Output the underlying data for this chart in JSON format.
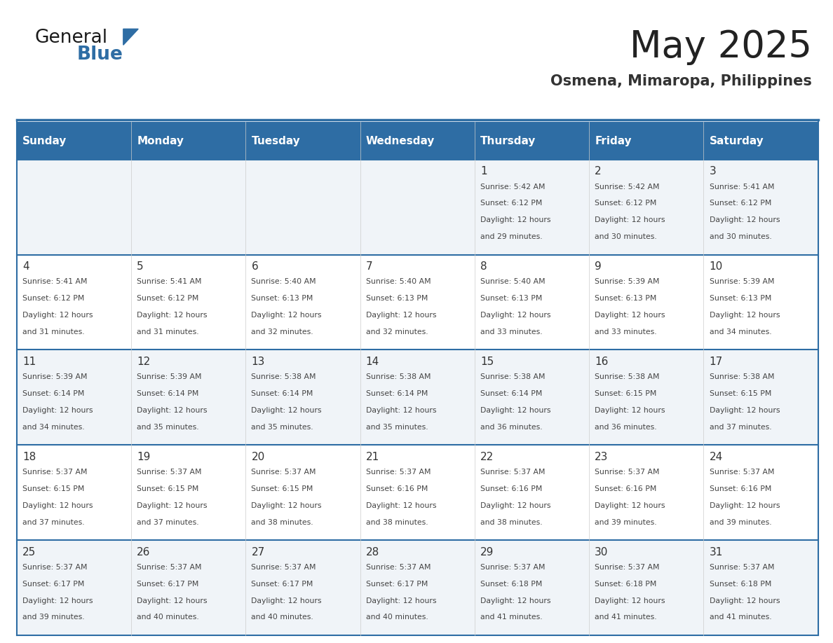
{
  "title": "May 2025",
  "subtitle": "Osmena, Mimaropa, Philippines",
  "days_of_week": [
    "Sunday",
    "Monday",
    "Tuesday",
    "Wednesday",
    "Thursday",
    "Friday",
    "Saturday"
  ],
  "header_bg": "#2E6DA4",
  "header_text": "#FFFFFF",
  "row_bg_even": "#F0F4F8",
  "row_bg_odd": "#FFFFFF",
  "grid_line_color": "#2E6DA4",
  "text_color": "#333333",
  "day_number_color": "#333333",
  "title_color": "#222222",
  "subtitle_color": "#333333",
  "calendar_data": [
    [
      {
        "day": "",
        "sunrise": "",
        "sunset": "",
        "daylight": ""
      },
      {
        "day": "",
        "sunrise": "",
        "sunset": "",
        "daylight": ""
      },
      {
        "day": "",
        "sunrise": "",
        "sunset": "",
        "daylight": ""
      },
      {
        "day": "",
        "sunrise": "",
        "sunset": "",
        "daylight": ""
      },
      {
        "day": "1",
        "sunrise": "5:42 AM",
        "sunset": "6:12 PM",
        "daylight": "12 hours and 29 minutes."
      },
      {
        "day": "2",
        "sunrise": "5:42 AM",
        "sunset": "6:12 PM",
        "daylight": "12 hours and 30 minutes."
      },
      {
        "day": "3",
        "sunrise": "5:41 AM",
        "sunset": "6:12 PM",
        "daylight": "12 hours and 30 minutes."
      }
    ],
    [
      {
        "day": "4",
        "sunrise": "5:41 AM",
        "sunset": "6:12 PM",
        "daylight": "12 hours and 31 minutes."
      },
      {
        "day": "5",
        "sunrise": "5:41 AM",
        "sunset": "6:12 PM",
        "daylight": "12 hours and 31 minutes."
      },
      {
        "day": "6",
        "sunrise": "5:40 AM",
        "sunset": "6:13 PM",
        "daylight": "12 hours and 32 minutes."
      },
      {
        "day": "7",
        "sunrise": "5:40 AM",
        "sunset": "6:13 PM",
        "daylight": "12 hours and 32 minutes."
      },
      {
        "day": "8",
        "sunrise": "5:40 AM",
        "sunset": "6:13 PM",
        "daylight": "12 hours and 33 minutes."
      },
      {
        "day": "9",
        "sunrise": "5:39 AM",
        "sunset": "6:13 PM",
        "daylight": "12 hours and 33 minutes."
      },
      {
        "day": "10",
        "sunrise": "5:39 AM",
        "sunset": "6:13 PM",
        "daylight": "12 hours and 34 minutes."
      }
    ],
    [
      {
        "day": "11",
        "sunrise": "5:39 AM",
        "sunset": "6:14 PM",
        "daylight": "12 hours and 34 minutes."
      },
      {
        "day": "12",
        "sunrise": "5:39 AM",
        "sunset": "6:14 PM",
        "daylight": "12 hours and 35 minutes."
      },
      {
        "day": "13",
        "sunrise": "5:38 AM",
        "sunset": "6:14 PM",
        "daylight": "12 hours and 35 minutes."
      },
      {
        "day": "14",
        "sunrise": "5:38 AM",
        "sunset": "6:14 PM",
        "daylight": "12 hours and 35 minutes."
      },
      {
        "day": "15",
        "sunrise": "5:38 AM",
        "sunset": "6:14 PM",
        "daylight": "12 hours and 36 minutes."
      },
      {
        "day": "16",
        "sunrise": "5:38 AM",
        "sunset": "6:15 PM",
        "daylight": "12 hours and 36 minutes."
      },
      {
        "day": "17",
        "sunrise": "5:38 AM",
        "sunset": "6:15 PM",
        "daylight": "12 hours and 37 minutes."
      }
    ],
    [
      {
        "day": "18",
        "sunrise": "5:37 AM",
        "sunset": "6:15 PM",
        "daylight": "12 hours and 37 minutes."
      },
      {
        "day": "19",
        "sunrise": "5:37 AM",
        "sunset": "6:15 PM",
        "daylight": "12 hours and 37 minutes."
      },
      {
        "day": "20",
        "sunrise": "5:37 AM",
        "sunset": "6:15 PM",
        "daylight": "12 hours and 38 minutes."
      },
      {
        "day": "21",
        "sunrise": "5:37 AM",
        "sunset": "6:16 PM",
        "daylight": "12 hours and 38 minutes."
      },
      {
        "day": "22",
        "sunrise": "5:37 AM",
        "sunset": "6:16 PM",
        "daylight": "12 hours and 38 minutes."
      },
      {
        "day": "23",
        "sunrise": "5:37 AM",
        "sunset": "6:16 PM",
        "daylight": "12 hours and 39 minutes."
      },
      {
        "day": "24",
        "sunrise": "5:37 AM",
        "sunset": "6:16 PM",
        "daylight": "12 hours and 39 minutes."
      }
    ],
    [
      {
        "day": "25",
        "sunrise": "5:37 AM",
        "sunset": "6:17 PM",
        "daylight": "12 hours and 39 minutes."
      },
      {
        "day": "26",
        "sunrise": "5:37 AM",
        "sunset": "6:17 PM",
        "daylight": "12 hours and 40 minutes."
      },
      {
        "day": "27",
        "sunrise": "5:37 AM",
        "sunset": "6:17 PM",
        "daylight": "12 hours and 40 minutes."
      },
      {
        "day": "28",
        "sunrise": "5:37 AM",
        "sunset": "6:17 PM",
        "daylight": "12 hours and 40 minutes."
      },
      {
        "day": "29",
        "sunrise": "5:37 AM",
        "sunset": "6:18 PM",
        "daylight": "12 hours and 41 minutes."
      },
      {
        "day": "30",
        "sunrise": "5:37 AM",
        "sunset": "6:18 PM",
        "daylight": "12 hours and 41 minutes."
      },
      {
        "day": "31",
        "sunrise": "5:37 AM",
        "sunset": "6:18 PM",
        "daylight": "12 hours and 41 minutes."
      }
    ]
  ]
}
